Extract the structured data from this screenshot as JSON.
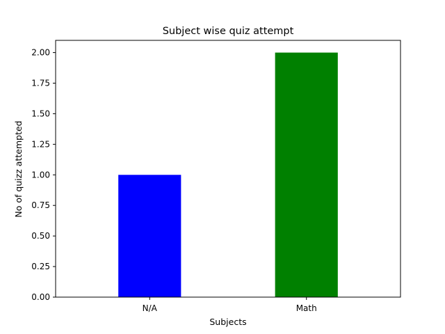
{
  "chart_data": {
    "type": "bar",
    "title": "Subject wise quiz attempt",
    "xlabel": "Subjects",
    "ylabel": "No of quizz attempted",
    "categories": [
      "N/A",
      "Math"
    ],
    "values": [
      1,
      2
    ],
    "colors": [
      "#0000ff",
      "#008000"
    ],
    "ylim": [
      0,
      2.1
    ],
    "yticks": [
      "0.00",
      "0.25",
      "0.50",
      "0.75",
      "1.00",
      "1.25",
      "1.50",
      "1.75",
      "2.00"
    ],
    "grid": false,
    "legend": "none"
  }
}
